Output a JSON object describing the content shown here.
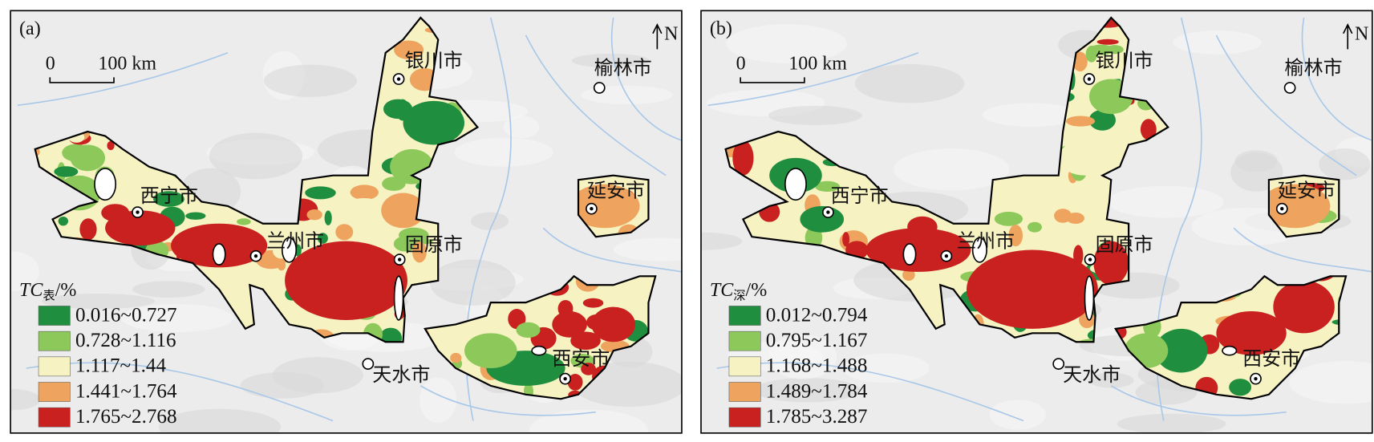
{
  "panels": [
    {
      "label": "(a)",
      "north": "N",
      "scale_bar": {
        "start": "0",
        "end": "100 km"
      },
      "cities": [
        "银川市",
        "榆林市",
        "西宁市",
        "延安市",
        "兰州市",
        "固原市",
        "天水市",
        "西安市"
      ],
      "legend": {
        "title": {
          "symbol": "TC",
          "subscript": "表",
          "unit": "/%"
        },
        "classes": [
          {
            "label": "0.016~0.727",
            "color": "#1f8f3f"
          },
          {
            "label": "0.728~1.116",
            "color": "#8cc85a"
          },
          {
            "label": "1.117~1.44",
            "color": "#f6f2c2"
          },
          {
            "label": "1.441~1.764",
            "color": "#eea45e"
          },
          {
            "label": "1.765~2.768",
            "color": "#c9211f"
          }
        ]
      }
    },
    {
      "label": "(b)",
      "north": "N",
      "scale_bar": {
        "start": "0",
        "end": "100 km"
      },
      "cities": [
        "银川市",
        "榆林市",
        "西宁市",
        "延安市",
        "兰州市",
        "固原市",
        "天水市",
        "西安市"
      ],
      "legend": {
        "title": {
          "symbol": "TC",
          "subscript": "深",
          "unit": "/%"
        },
        "classes": [
          {
            "label": "0.012~0.794",
            "color": "#1f8f3f"
          },
          {
            "label": "0.795~1.167",
            "color": "#8cc85a"
          },
          {
            "label": "1.168~1.488",
            "color": "#f6f2c2"
          },
          {
            "label": "1.489~1.784",
            "color": "#eea45e"
          },
          {
            "label": "1.785~3.287",
            "color": "#c9211f"
          }
        ]
      }
    }
  ]
}
